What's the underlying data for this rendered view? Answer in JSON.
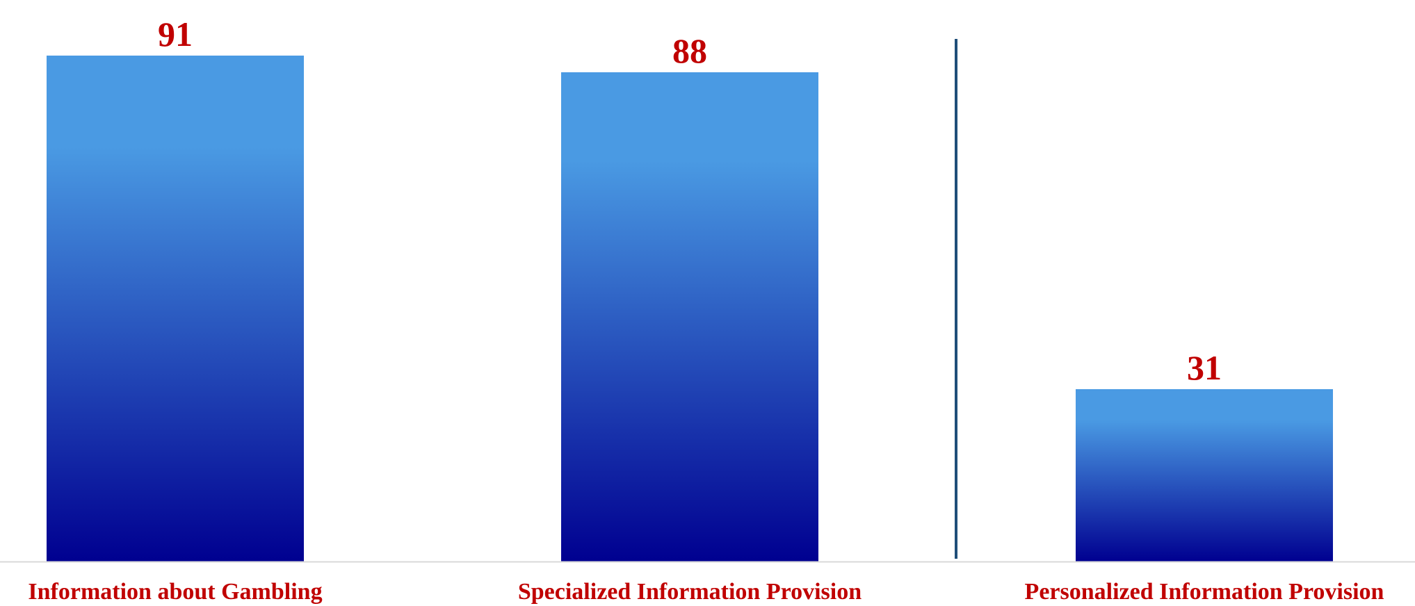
{
  "chart_data": {
    "type": "bar",
    "categories": [
      "Information about Gambling",
      "Specialized Information Provision",
      "Personalized Information Provision"
    ],
    "values": [
      91,
      88,
      31
    ],
    "title": "",
    "xlabel": "",
    "ylabel": "",
    "ylim": [
      0,
      100
    ],
    "grid": false,
    "legend": "none",
    "divider_after_category_index": 1,
    "colors": {
      "bar_top": "#4a9ae3",
      "bar_bottom": "#000090",
      "label_text": "#c00000",
      "divider": "#1f4e79",
      "axis": "#d9d9d9"
    }
  }
}
